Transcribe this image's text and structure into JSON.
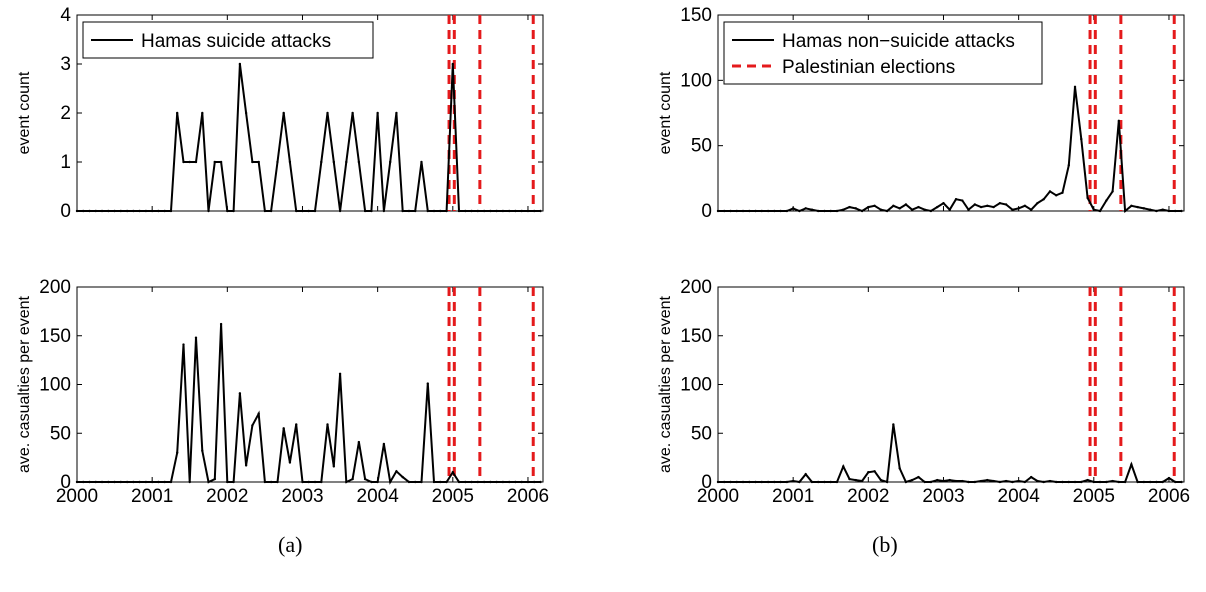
{
  "panel_labels": {
    "a": "(a)",
    "b": "(b)"
  },
  "colors": {
    "line": "#000000",
    "election": "#e41a1c",
    "axis": "#000000"
  },
  "chart_data": [
    {
      "id": "suicide_count",
      "type": "line",
      "xlim": [
        2000,
        2006.2
      ],
      "ylim": [
        0,
        4
      ],
      "yticks": [
        0,
        1,
        2,
        3,
        4
      ],
      "xticks": [],
      "ylabel": "event count",
      "legend": {
        "position": "top-left",
        "entries": [
          {
            "label": "Hamas suicide attacks",
            "style": "solid"
          }
        ]
      },
      "series": [
        {
          "name": "Hamas suicide attacks",
          "x": [
            2000,
            2000.083,
            2000.167,
            2000.25,
            2000.333,
            2000.417,
            2000.5,
            2000.583,
            2000.667,
            2000.75,
            2000.833,
            2000.917,
            2001,
            2001.083,
            2001.167,
            2001.25,
            2001.333,
            2001.417,
            2001.5,
            2001.583,
            2001.667,
            2001.75,
            2001.833,
            2001.917,
            2002,
            2002.083,
            2002.167,
            2002.25,
            2002.333,
            2002.417,
            2002.5,
            2002.583,
            2002.667,
            2002.75,
            2002.833,
            2002.917,
            2003,
            2003.083,
            2003.167,
            2003.25,
            2003.333,
            2003.417,
            2003.5,
            2003.583,
            2003.667,
            2003.75,
            2003.833,
            2003.917,
            2004,
            2004.083,
            2004.167,
            2004.25,
            2004.333,
            2004.417,
            2004.5,
            2004.583,
            2004.667,
            2004.75,
            2004.833,
            2004.917,
            2005,
            2005.083,
            2005.167,
            2005.25,
            2005.333,
            2005.417,
            2005.5,
            2005.583,
            2005.667,
            2005.75,
            2005.833,
            2005.917,
            2006,
            2006.083,
            2006.167
          ],
          "y": [
            0,
            0,
            0,
            0,
            0,
            0,
            0,
            0,
            0,
            0,
            0,
            0,
            0,
            0,
            0,
            0,
            2,
            1,
            1,
            1,
            2,
            0,
            1,
            1,
            0,
            0,
            3,
            2,
            1,
            1,
            0,
            0,
            1,
            2,
            1,
            0,
            0,
            0,
            0,
            1,
            2,
            1,
            0,
            1,
            2,
            1,
            0,
            0,
            2,
            0,
            1,
            2,
            0,
            0,
            0,
            1,
            0,
            0,
            0,
            0,
            3,
            0,
            0,
            0,
            0,
            0,
            0,
            0,
            0,
            0,
            0,
            0,
            0,
            0,
            0
          ]
        }
      ],
      "elections": [
        2004.95,
        2005.02,
        2005.36,
        2006.07
      ]
    },
    {
      "id": "suicide_casualties",
      "type": "line",
      "xlim": [
        2000,
        2006.2
      ],
      "ylim": [
        0,
        200
      ],
      "yticks": [
        0,
        50,
        100,
        150,
        200
      ],
      "xticks": [
        2000,
        2001,
        2002,
        2003,
        2004,
        2005,
        2006
      ],
      "ylabel": "ave. casualties per event",
      "series": [
        {
          "x": [
            2000,
            2000.083,
            2000.167,
            2000.25,
            2000.333,
            2000.417,
            2000.5,
            2000.583,
            2000.667,
            2000.75,
            2000.833,
            2000.917,
            2001,
            2001.083,
            2001.167,
            2001.25,
            2001.333,
            2001.417,
            2001.5,
            2001.583,
            2001.667,
            2001.75,
            2001.833,
            2001.917,
            2002,
            2002.083,
            2002.167,
            2002.25,
            2002.333,
            2002.417,
            2002.5,
            2002.583,
            2002.667,
            2002.75,
            2002.833,
            2002.917,
            2003,
            2003.083,
            2003.167,
            2003.25,
            2003.333,
            2003.417,
            2003.5,
            2003.583,
            2003.667,
            2003.75,
            2003.833,
            2003.917,
            2004,
            2004.083,
            2004.167,
            2004.25,
            2004.333,
            2004.417,
            2004.5,
            2004.583,
            2004.667,
            2004.75,
            2004.833,
            2004.917,
            2005,
            2005.083,
            2005.167,
            2005.25,
            2005.333,
            2005.417,
            2005.5,
            2005.583,
            2005.667,
            2005.75,
            2005.833,
            2005.917,
            2006,
            2006.083,
            2006.167
          ],
          "y": [
            0,
            0,
            0,
            0,
            0,
            0,
            0,
            0,
            0,
            0,
            0,
            0,
            0,
            0,
            0,
            0,
            30,
            141,
            0,
            148,
            32,
            0,
            3,
            162,
            0,
            0,
            91,
            17,
            58,
            70,
            0,
            0,
            0,
            55,
            20,
            59,
            0,
            0,
            0,
            0,
            59,
            16,
            111,
            0,
            3,
            41,
            3,
            0,
            0,
            39,
            0,
            11,
            5,
            0,
            0,
            0,
            101,
            0,
            0,
            0,
            10,
            0,
            0,
            0,
            0,
            0,
            0,
            0,
            0,
            0,
            0,
            0,
            0,
            0,
            0
          ]
        }
      ],
      "elections": [
        2004.95,
        2005.02,
        2005.36,
        2006.07
      ]
    },
    {
      "id": "nonsuicide_count",
      "type": "line",
      "xlim": [
        2000,
        2006.2
      ],
      "ylim": [
        0,
        150
      ],
      "yticks": [
        0,
        50,
        100,
        150
      ],
      "xticks": [],
      "ylabel": "event count",
      "legend": {
        "position": "top-left",
        "entries": [
          {
            "label": "Hamas non−suicide attacks",
            "style": "solid"
          },
          {
            "label": "Palestinian elections",
            "style": "dashed"
          }
        ]
      },
      "series": [
        {
          "name": "Hamas non−suicide attacks",
          "x": [
            2000,
            2000.083,
            2000.167,
            2000.25,
            2000.333,
            2000.417,
            2000.5,
            2000.583,
            2000.667,
            2000.75,
            2000.833,
            2000.917,
            2001,
            2001.083,
            2001.167,
            2001.25,
            2001.333,
            2001.417,
            2001.5,
            2001.583,
            2001.667,
            2001.75,
            2001.833,
            2001.917,
            2002,
            2002.083,
            2002.167,
            2002.25,
            2002.333,
            2002.417,
            2002.5,
            2002.583,
            2002.667,
            2002.75,
            2002.833,
            2002.917,
            2003,
            2003.083,
            2003.167,
            2003.25,
            2003.333,
            2003.417,
            2003.5,
            2003.583,
            2003.667,
            2003.75,
            2003.833,
            2003.917,
            2004,
            2004.083,
            2004.167,
            2004.25,
            2004.333,
            2004.417,
            2004.5,
            2004.583,
            2004.667,
            2004.75,
            2004.833,
            2004.917,
            2005,
            2005.083,
            2005.167,
            2005.25,
            2005.333,
            2005.417,
            2005.5,
            2005.583,
            2005.667,
            2005.75,
            2005.833,
            2005.917,
            2006,
            2006.083,
            2006.167
          ],
          "y": [
            0,
            0,
            0,
            0,
            0,
            0,
            0,
            0,
            0,
            0,
            0,
            0,
            2,
            0,
            2,
            1,
            0,
            0,
            0,
            0,
            1,
            3,
            2,
            0,
            3,
            4,
            1,
            0,
            4,
            2,
            5,
            1,
            3,
            1,
            0,
            3,
            6,
            1,
            9,
            8,
            1,
            5,
            3,
            4,
            3,
            6,
            5,
            1,
            2,
            4,
            1,
            6,
            9,
            15,
            12,
            14,
            35,
            95,
            55,
            10,
            1,
            0,
            8,
            15,
            69,
            0,
            4,
            3,
            2,
            1,
            0,
            1,
            0,
            0,
            0
          ]
        }
      ],
      "elections": [
        2004.95,
        2005.02,
        2005.36,
        2006.07
      ]
    },
    {
      "id": "nonsuicide_casualties",
      "type": "line",
      "xlim": [
        2000,
        2006.2
      ],
      "ylim": [
        0,
        200
      ],
      "yticks": [
        0,
        50,
        100,
        150,
        200
      ],
      "xticks": [
        2000,
        2001,
        2002,
        2003,
        2004,
        2005,
        2006
      ],
      "ylabel": "ave. casualties per event",
      "series": [
        {
          "x": [
            2000,
            2000.083,
            2000.167,
            2000.25,
            2000.333,
            2000.417,
            2000.5,
            2000.583,
            2000.667,
            2000.75,
            2000.833,
            2000.917,
            2001,
            2001.083,
            2001.167,
            2001.25,
            2001.333,
            2001.417,
            2001.5,
            2001.583,
            2001.667,
            2001.75,
            2001.833,
            2001.917,
            2002,
            2002.083,
            2002.167,
            2002.25,
            2002.333,
            2002.417,
            2002.5,
            2002.583,
            2002.667,
            2002.75,
            2002.833,
            2002.917,
            2003,
            2003.083,
            2003.167,
            2003.25,
            2003.333,
            2003.417,
            2003.5,
            2003.583,
            2003.667,
            2003.75,
            2003.833,
            2003.917,
            2004,
            2004.083,
            2004.167,
            2004.25,
            2004.333,
            2004.417,
            2004.5,
            2004.583,
            2004.667,
            2004.75,
            2004.833,
            2004.917,
            2005,
            2005.083,
            2005.167,
            2005.25,
            2005.333,
            2005.417,
            2005.5,
            2005.583,
            2005.667,
            2005.75,
            2005.833,
            2005.917,
            2006,
            2006.083,
            2006.167
          ],
          "y": [
            0,
            0,
            0,
            0,
            0,
            0,
            0,
            0,
            0,
            0,
            0,
            0,
            1,
            0,
            8,
            0,
            0,
            0,
            0,
            0,
            16,
            3,
            2,
            1,
            10,
            11,
            2,
            0,
            59,
            14,
            0,
            2,
            5,
            0,
            0,
            2,
            1,
            2,
            1,
            1,
            0,
            0,
            1,
            2,
            1,
            0,
            1,
            0,
            1,
            0,
            5,
            1,
            0,
            1,
            0,
            0,
            0,
            0,
            0,
            2,
            0,
            0,
            0,
            1,
            0,
            0,
            18,
            0,
            0,
            0,
            0,
            0,
            4,
            0,
            0
          ]
        }
      ],
      "elections": [
        2004.95,
        2005.02,
        2005.36,
        2006.07
      ]
    }
  ]
}
